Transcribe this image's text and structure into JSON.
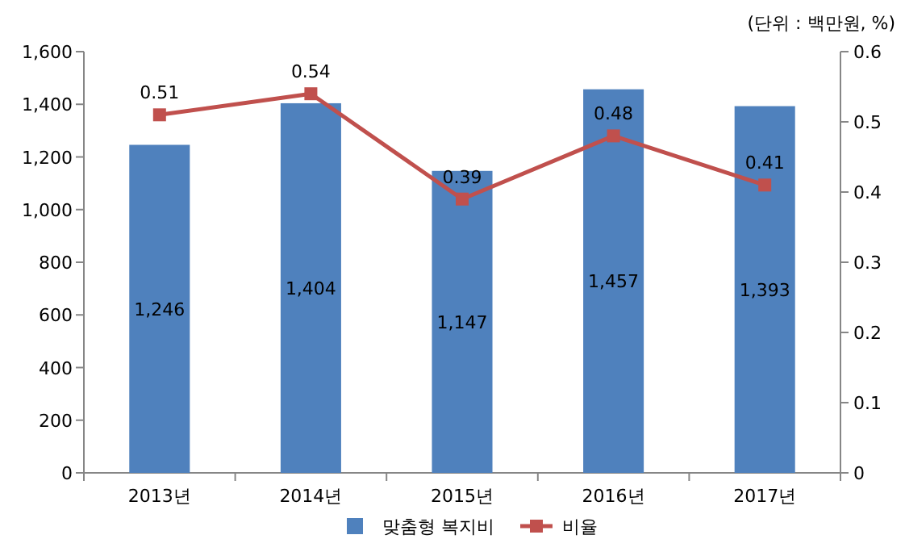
{
  "chart_data": {
    "type": "bar",
    "categories": [
      "2013년",
      "2014년",
      "2015년",
      "2016년",
      "2017년"
    ],
    "series": [
      {
        "name": "맞춤형 복지비",
        "color": "#4f81bd",
        "values": [
          1246,
          1404,
          1147,
          1457,
          1393
        ],
        "value_labels": [
          "1,246",
          "1,404",
          "1,147",
          "1,457",
          "1,393"
        ]
      },
      {
        "name": "비율",
        "type": "line",
        "axis": "y2",
        "color": "#c0504d",
        "marker": "square",
        "values": [
          0.51,
          0.54,
          0.39,
          0.48,
          0.41
        ],
        "value_labels": [
          "0.51",
          "0.54",
          "0.39",
          "0.48",
          "0.41"
        ]
      }
    ],
    "ylim": [
      0,
      1600
    ],
    "yticks": [
      0,
      200,
      400,
      600,
      800,
      {
        "value": 1000,
        "label": "1,000"
      },
      {
        "value": 1200,
        "label": "1,200"
      },
      {
        "value": 1400,
        "label": "1,400"
      },
      {
        "value": 1600,
        "label": "1,600"
      }
    ],
    "y2lim": [
      0,
      0.6
    ],
    "y2ticks": [
      0,
      0.1,
      0.2,
      0.3,
      0.4,
      0.5,
      0.6
    ],
    "annotations": [
      "(단위 : 백만원, %)"
    ],
    "legend": "bottom",
    "grid": false
  }
}
